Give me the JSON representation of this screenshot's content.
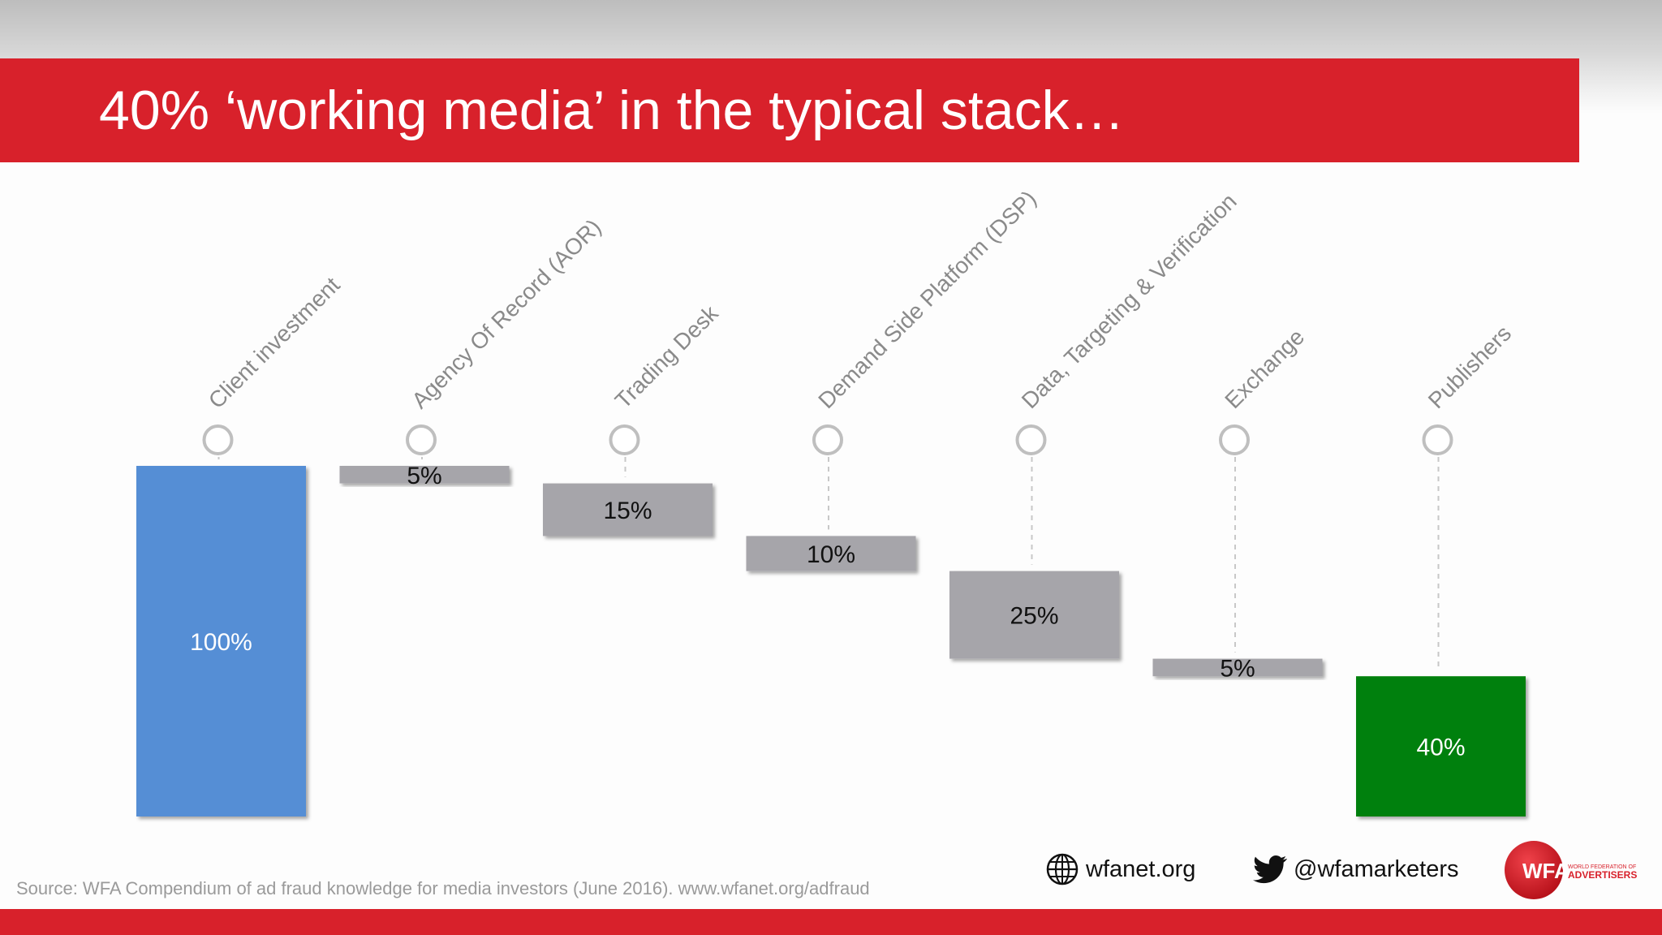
{
  "slide": {
    "title": "40% ‘working media’ in the typical stack…",
    "source": "Source: WFA Compendium of ad fraud knowledge for media investors (June 2016). www.wfanet.org/adfraud",
    "footer": {
      "website": "wfanet.org",
      "twitter": "@wfamarketers",
      "logo_text": "WFA",
      "logo_tagline_1": "WORLD FEDERATION OF",
      "logo_tagline_2": "ADVERTISERS"
    }
  },
  "colors": {
    "title_band": "#d8212b",
    "client_bar": "#558ed5",
    "cost_bar": "#a6a5aa",
    "publisher_bar": "#00800a",
    "marker": "#bfbfbf"
  },
  "chart_data": {
    "type": "bar",
    "subtype": "waterfall",
    "title": "",
    "xlabel": "",
    "ylabel": "",
    "ylim": [
      0,
      100
    ],
    "grid": false,
    "legend": "none",
    "categories": [
      "Client investment",
      "Agency Of Record (AOR)",
      "Trading Desk",
      "Demand Side Platform (DSP)",
      "Data, Targeting & Verification",
      "Exchange",
      "Publishers"
    ],
    "values": [
      100,
      5,
      15,
      10,
      25,
      5,
      40
    ],
    "data_labels": [
      "100%",
      "5%",
      "15%",
      "10%",
      "25%",
      "5%",
      "40%"
    ],
    "roles": [
      "total",
      "decrease",
      "decrease",
      "decrease",
      "decrease",
      "decrease",
      "total"
    ]
  }
}
